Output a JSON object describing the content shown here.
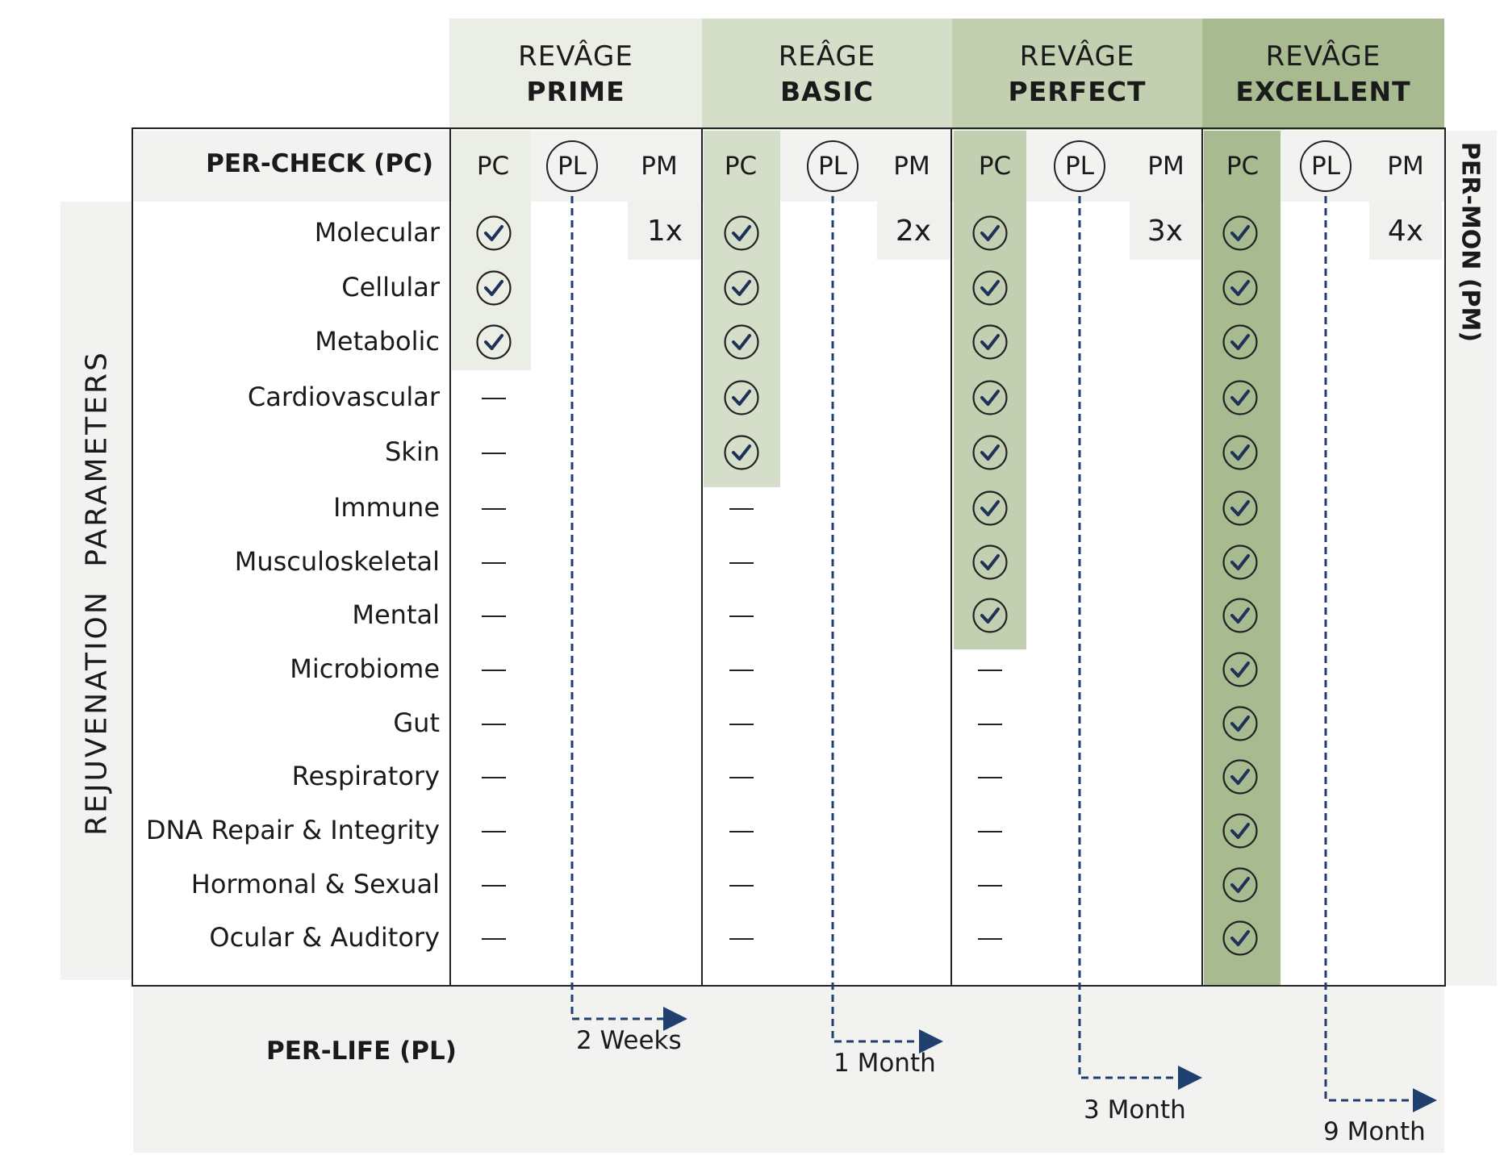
{
  "plans": [
    {
      "brand": "REVÂGE",
      "name": "PRIME",
      "pm": "1x",
      "pl": "2 Weeks"
    },
    {
      "brand": "REÂGE",
      "name": "BASIC",
      "pm": "2x",
      "pl": "1 Month"
    },
    {
      "brand": "REVÂGE",
      "name": "PERFECT",
      "pm": "3x",
      "pl": "3 Month"
    },
    {
      "brand": "REVÂGE",
      "name": "EXCELLENT",
      "pm": "4x",
      "pl": "9 Month"
    }
  ],
  "col_labels": {
    "pc": "PC",
    "pl": "PL",
    "pm": "PM"
  },
  "per_check_label": "PER-CHECK (PC)",
  "per_life_label": "PER-LIFE (PL)",
  "per_mon_label": "PER-MON (PM)",
  "side_label": "REJUVENATION PARAMETERS",
  "parameters": [
    "Molecular",
    "Cellular",
    "Metabolic",
    "Cardiovascular",
    "Skin",
    "Immune",
    "Musculoskeletal",
    "Mental",
    "Microbiome",
    "Gut",
    "Respiratory",
    "DNA Repair & Integrity",
    "Hormonal & Sexual",
    "Ocular & Auditory"
  ],
  "included_counts": [
    3,
    5,
    8,
    14
  ],
  "colors": {
    "prime": "#eaeee4",
    "basic": "#d4dec8",
    "perfect": "#c2d0b1",
    "excellent": "#a8ba8f",
    "check": "#1f3158",
    "arrow": "#1f3f6e",
    "panel": "#f2f2f0"
  }
}
